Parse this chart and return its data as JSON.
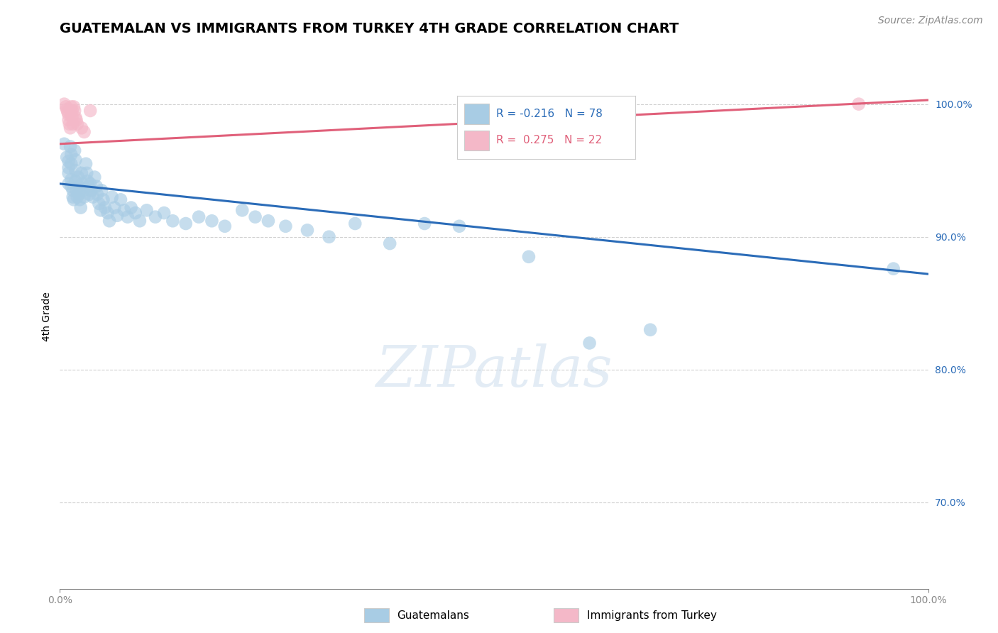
{
  "title": "GUATEMALAN VS IMMIGRANTS FROM TURKEY 4TH GRADE CORRELATION CHART",
  "source_text": "Source: ZipAtlas.com",
  "ylabel": "4th Grade",
  "y_tick_values": [
    0.7,
    0.8,
    0.9,
    1.0
  ],
  "xmin": 0.0,
  "xmax": 1.0,
  "ymin": 0.635,
  "ymax": 1.045,
  "legend_label_blue": "Guatemalans",
  "legend_label_pink": "Immigrants from Turkey",
  "R_blue": -0.216,
  "N_blue": 78,
  "R_pink": 0.275,
  "N_pink": 22,
  "blue_color": "#a8cce4",
  "pink_color": "#f4b8c8",
  "blue_line_color": "#2b6cb8",
  "pink_line_color": "#e0607a",
  "blue_trend_x": [
    0.0,
    1.0
  ],
  "blue_trend_y": [
    0.94,
    0.872
  ],
  "pink_trend_x": [
    0.0,
    1.0
  ],
  "pink_trend_y": [
    0.97,
    1.003
  ],
  "blue_scatter": [
    [
      0.005,
      0.97
    ],
    [
      0.008,
      0.96
    ],
    [
      0.01,
      0.957
    ],
    [
      0.01,
      0.952
    ],
    [
      0.01,
      0.948
    ],
    [
      0.01,
      0.94
    ],
    [
      0.012,
      0.968
    ],
    [
      0.013,
      0.962
    ],
    [
      0.013,
      0.955
    ],
    [
      0.013,
      0.943
    ],
    [
      0.013,
      0.938
    ],
    [
      0.015,
      0.935
    ],
    [
      0.015,
      0.93
    ],
    [
      0.016,
      0.928
    ],
    [
      0.017,
      0.965
    ],
    [
      0.018,
      0.958
    ],
    [
      0.018,
      0.95
    ],
    [
      0.018,
      0.942
    ],
    [
      0.019,
      0.935
    ],
    [
      0.02,
      0.93
    ],
    [
      0.021,
      0.945
    ],
    [
      0.022,
      0.938
    ],
    [
      0.022,
      0.932
    ],
    [
      0.023,
      0.928
    ],
    [
      0.024,
      0.922
    ],
    [
      0.025,
      0.948
    ],
    [
      0.026,
      0.94
    ],
    [
      0.027,
      0.935
    ],
    [
      0.028,
      0.93
    ],
    [
      0.03,
      0.955
    ],
    [
      0.031,
      0.948
    ],
    [
      0.032,
      0.942
    ],
    [
      0.033,
      0.938
    ],
    [
      0.034,
      0.932
    ],
    [
      0.035,
      0.94
    ],
    [
      0.036,
      0.935
    ],
    [
      0.038,
      0.93
    ],
    [
      0.04,
      0.945
    ],
    [
      0.042,
      0.938
    ],
    [
      0.043,
      0.932
    ],
    [
      0.045,
      0.925
    ],
    [
      0.047,
      0.92
    ],
    [
      0.048,
      0.935
    ],
    [
      0.05,
      0.928
    ],
    [
      0.052,
      0.922
    ],
    [
      0.055,
      0.918
    ],
    [
      0.057,
      0.912
    ],
    [
      0.06,
      0.93
    ],
    [
      0.063,
      0.922
    ],
    [
      0.066,
      0.916
    ],
    [
      0.07,
      0.928
    ],
    [
      0.074,
      0.92
    ],
    [
      0.078,
      0.915
    ],
    [
      0.082,
      0.922
    ],
    [
      0.087,
      0.918
    ],
    [
      0.092,
      0.912
    ],
    [
      0.1,
      0.92
    ],
    [
      0.11,
      0.915
    ],
    [
      0.12,
      0.918
    ],
    [
      0.13,
      0.912
    ],
    [
      0.145,
      0.91
    ],
    [
      0.16,
      0.915
    ],
    [
      0.175,
      0.912
    ],
    [
      0.19,
      0.908
    ],
    [
      0.21,
      0.92
    ],
    [
      0.225,
      0.915
    ],
    [
      0.24,
      0.912
    ],
    [
      0.26,
      0.908
    ],
    [
      0.285,
      0.905
    ],
    [
      0.31,
      0.9
    ],
    [
      0.34,
      0.91
    ],
    [
      0.38,
      0.895
    ],
    [
      0.42,
      0.91
    ],
    [
      0.46,
      0.908
    ],
    [
      0.54,
      0.885
    ],
    [
      0.61,
      0.82
    ],
    [
      0.68,
      0.83
    ],
    [
      0.96,
      0.876
    ]
  ],
  "pink_scatter": [
    [
      0.005,
      1.0
    ],
    [
      0.007,
      0.998
    ],
    [
      0.008,
      0.996
    ],
    [
      0.009,
      0.994
    ],
    [
      0.01,
      0.992
    ],
    [
      0.01,
      0.988
    ],
    [
      0.011,
      0.985
    ],
    [
      0.012,
      0.982
    ],
    [
      0.013,
      0.998
    ],
    [
      0.014,
      0.995
    ],
    [
      0.014,
      0.99
    ],
    [
      0.015,
      0.985
    ],
    [
      0.016,
      0.998
    ],
    [
      0.017,
      0.995
    ],
    [
      0.018,
      0.99
    ],
    [
      0.019,
      0.988
    ],
    [
      0.02,
      0.985
    ],
    [
      0.025,
      0.982
    ],
    [
      0.028,
      0.979
    ],
    [
      0.035,
      0.995
    ],
    [
      0.62,
      1.0
    ],
    [
      0.92,
      1.0
    ]
  ],
  "grid_color": "#d0d0d0",
  "background_color": "#ffffff",
  "watermark_text": "ZIPatlas",
  "title_fontsize": 14,
  "axis_label_fontsize": 10,
  "tick_fontsize": 10,
  "source_fontsize": 10
}
